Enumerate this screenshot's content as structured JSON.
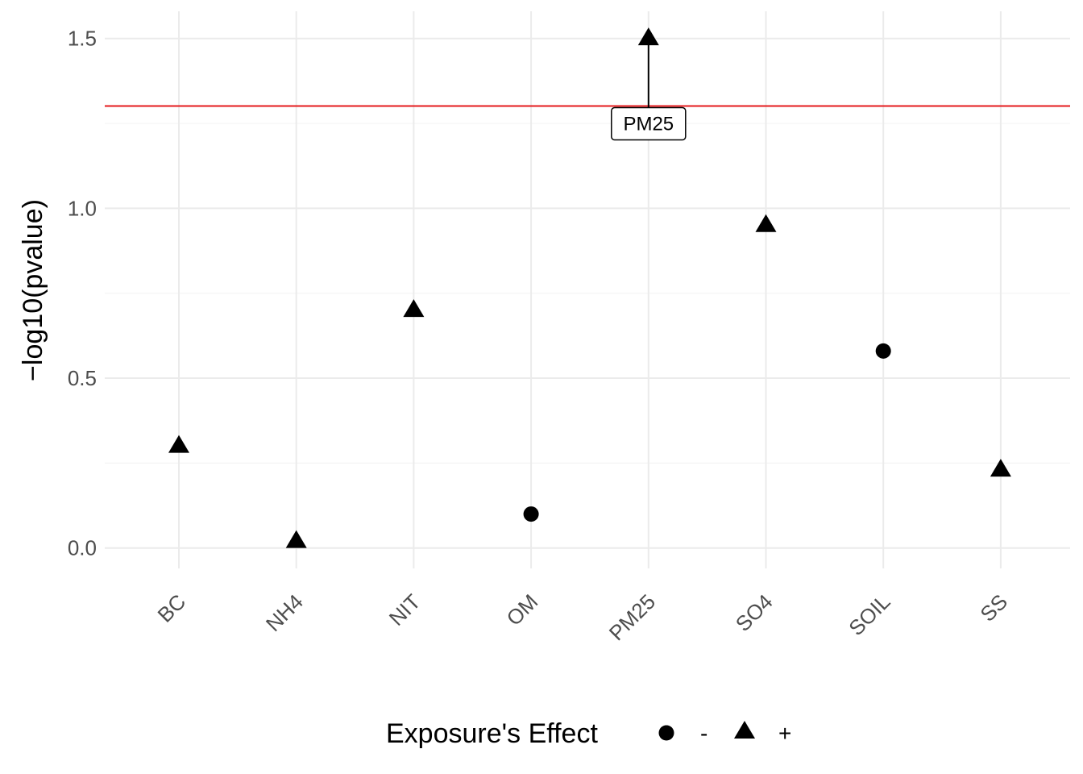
{
  "chart_data": {
    "type": "scatter",
    "categories": [
      "BC",
      "NH4",
      "NIT",
      "OM",
      "PM25",
      "SO4",
      "SOIL",
      "SS"
    ],
    "values": [
      0.3,
      0.02,
      0.7,
      0.1,
      1.5,
      0.95,
      0.58,
      0.23
    ],
    "effects": [
      "+",
      "+",
      "+",
      "-",
      "+",
      "+",
      "-",
      "+"
    ],
    "ylabel": "−log10(pvalue)",
    "ylim": [
      -0.06,
      1.58
    ],
    "yticks": [
      0.0,
      0.5,
      1.0,
      1.5
    ],
    "ytick_labels": [
      "0.0",
      "0.5",
      "1.0",
      "1.5"
    ],
    "threshold": 1.30103,
    "threshold_color": "#e41a1c",
    "grid": true,
    "legend": {
      "title": "Exposure's Effect",
      "placement": "bottom",
      "entries": [
        {
          "label": "-",
          "shape": "circle"
        },
        {
          "label": "+",
          "shape": "triangle"
        }
      ]
    },
    "annotations": [
      {
        "text": "PM25",
        "category": "PM25",
        "value": 1.5
      }
    ]
  }
}
